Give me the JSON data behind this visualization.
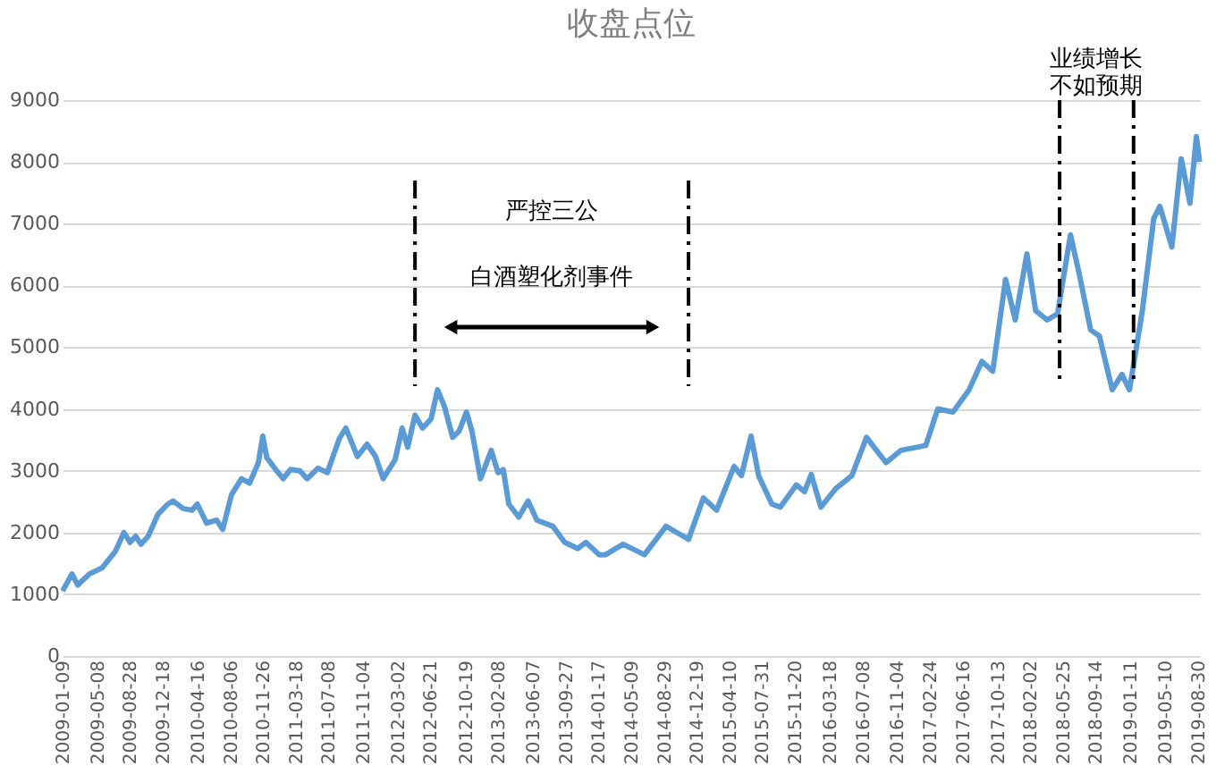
{
  "chart_data": {
    "type": "line",
    "title": "收盘点位",
    "x": [
      "2009-01-09",
      "2009-02-10",
      "2009-03-02",
      "2009-04-11",
      "2009-05-25",
      "2009-07-08",
      "2009-08-07",
      "2009-08-28",
      "2009-09-16",
      "2009-10-04",
      "2009-10-29",
      "2009-12-02",
      "2010-01-04",
      "2010-01-22",
      "2010-02-25",
      "2010-03-27",
      "2010-04-15",
      "2010-05-17",
      "2010-06-20",
      "2010-07-11",
      "2010-08-10",
      "2010-09-13",
      "2010-10-11",
      "2010-11-10",
      "2010-11-25",
      "2010-12-09",
      "2011-01-08",
      "2011-02-03",
      "2011-02-28",
      "2011-04-01",
      "2011-04-26",
      "2011-06-02",
      "2011-07-04",
      "2011-08-14",
      "2011-09-05",
      "2011-10-15",
      "2011-11-17",
      "2011-12-16",
      "2012-01-11",
      "2012-02-21",
      "2012-03-16",
      "2012-04-04",
      "2012-04-29",
      "2012-05-25",
      "2012-06-23",
      "2012-07-15",
      "2012-08-07",
      "2012-09-05",
      "2012-09-27",
      "2012-10-22",
      "2012-11-10",
      "2012-12-09",
      "2013-01-15",
      "2013-02-07",
      "2013-02-25",
      "2013-03-16",
      "2013-04-19",
      "2013-05-21",
      "2013-06-20",
      "2013-08-14",
      "2013-09-23",
      "2013-11-07",
      "2013-12-05",
      "2014-01-19",
      "2014-02-10",
      "2014-04-11",
      "2014-06-23",
      "2014-09-05",
      "2014-11-21",
      "2015-01-11",
      "2015-02-25",
      "2015-04-26",
      "2015-05-21",
      "2015-06-23",
      "2015-07-19",
      "2015-09-02",
      "2015-10-01",
      "2015-11-25",
      "2015-12-23",
      "2016-01-15",
      "2016-02-17",
      "2016-04-08",
      "2016-06-02",
      "2016-07-22",
      "2016-09-27",
      "2016-11-17",
      "2017-02-10",
      "2017-03-23",
      "2017-05-14",
      "2017-07-08",
      "2017-08-21",
      "2017-09-27",
      "2017-11-10",
      "2017-12-13",
      "2018-01-22",
      "2018-02-21",
      "2018-04-01",
      "2018-05-07",
      "2018-06-20",
      "2018-07-19",
      "2018-08-28",
      "2018-09-27",
      "2018-11-10",
      "2018-12-13",
      "2019-01-08",
      "2019-02-21",
      "2019-04-01",
      "2019-04-22",
      "2019-06-02",
      "2019-07-04",
      "2019-08-03",
      "2019-08-25",
      "2019-09-05"
    ],
    "series": [
      {
        "color": "#5b9bd5",
        "values": [
          1050,
          1330,
          1150,
          1330,
          1430,
          1690,
          2000,
          1840,
          1940,
          1810,
          1940,
          2300,
          2460,
          2510,
          2390,
          2360,
          2460,
          2150,
          2200,
          2050,
          2610,
          2870,
          2800,
          3130,
          3560,
          3210,
          3020,
          2870,
          3020,
          3000,
          2870,
          3040,
          2970,
          3520,
          3690,
          3230,
          3430,
          3230,
          2870,
          3180,
          3690,
          3380,
          3900,
          3690,
          3840,
          4310,
          4050,
          3540,
          3640,
          3950,
          3640,
          2870,
          3330,
          2970,
          3020,
          2460,
          2250,
          2510,
          2200,
          2100,
          1840,
          1740,
          1840,
          1640,
          1640,
          1810,
          1640,
          2100,
          1890,
          2560,
          2360,
          3070,
          2920,
          3560,
          2920,
          2460,
          2410,
          2770,
          2660,
          2940,
          2410,
          2710,
          2920,
          3540,
          3130,
          3330,
          3410,
          4000,
          3950,
          4310,
          4770,
          4610,
          6100,
          5440,
          6510,
          5590,
          5440,
          5540,
          6820,
          6210,
          5280,
          5180,
          4310,
          4560,
          4310,
          5590,
          7080,
          7280,
          6620,
          8050,
          7330,
          8410,
          8000
        ]
      }
    ],
    "xlim": [
      "2009-01-09",
      "2019-09-06"
    ],
    "xticks": [
      "2009-01-09",
      "2009-05-08",
      "2009-08-28",
      "2009-12-18",
      "2010-04-16",
      "2010-08-06",
      "2010-11-26",
      "2011-03-18",
      "2011-07-08",
      "2011-11-04",
      "2012-03-02",
      "2012-06-21",
      "2012-10-19",
      "2013-02-08",
      "2013-06-07",
      "2013-09-27",
      "2014-01-17",
      "2014-05-09",
      "2014-08-29",
      "2014-12-19",
      "2015-04-10",
      "2015-07-31",
      "2015-11-20",
      "2016-03-18",
      "2016-07-08",
      "2016-11-04",
      "2017-02-24",
      "2017-06-16",
      "2017-10-13",
      "2018-02-02",
      "2018-05-25",
      "2018-09-14",
      "2019-01-11",
      "2019-05-10",
      "2019-08-30"
    ],
    "ylim": [
      0,
      9000
    ],
    "yticks": [
      0,
      1000,
      2000,
      3000,
      4000,
      5000,
      6000,
      7000,
      8000,
      9000
    ],
    "grid": "y",
    "legend": false,
    "marker": "none",
    "line_style": "solid",
    "ref_lines": [
      {
        "axis": "x",
        "value": "2012-04-29",
        "color": "#000000",
        "line_style": "dashed"
      },
      {
        "axis": "x",
        "value": "2014-11-21",
        "color": "#000000",
        "line_style": "dashed"
      },
      {
        "axis": "x",
        "value": "2018-05-14",
        "color": "#000000",
        "line_style": "dashed"
      },
      {
        "axis": "x",
        "value": "2019-01-22",
        "color": "#000000",
        "line_style": "dashed"
      }
    ],
    "annotations": [
      "严控三公",
      "白酒塑化剂事件",
      "业绩增长不如预期"
    ]
  }
}
